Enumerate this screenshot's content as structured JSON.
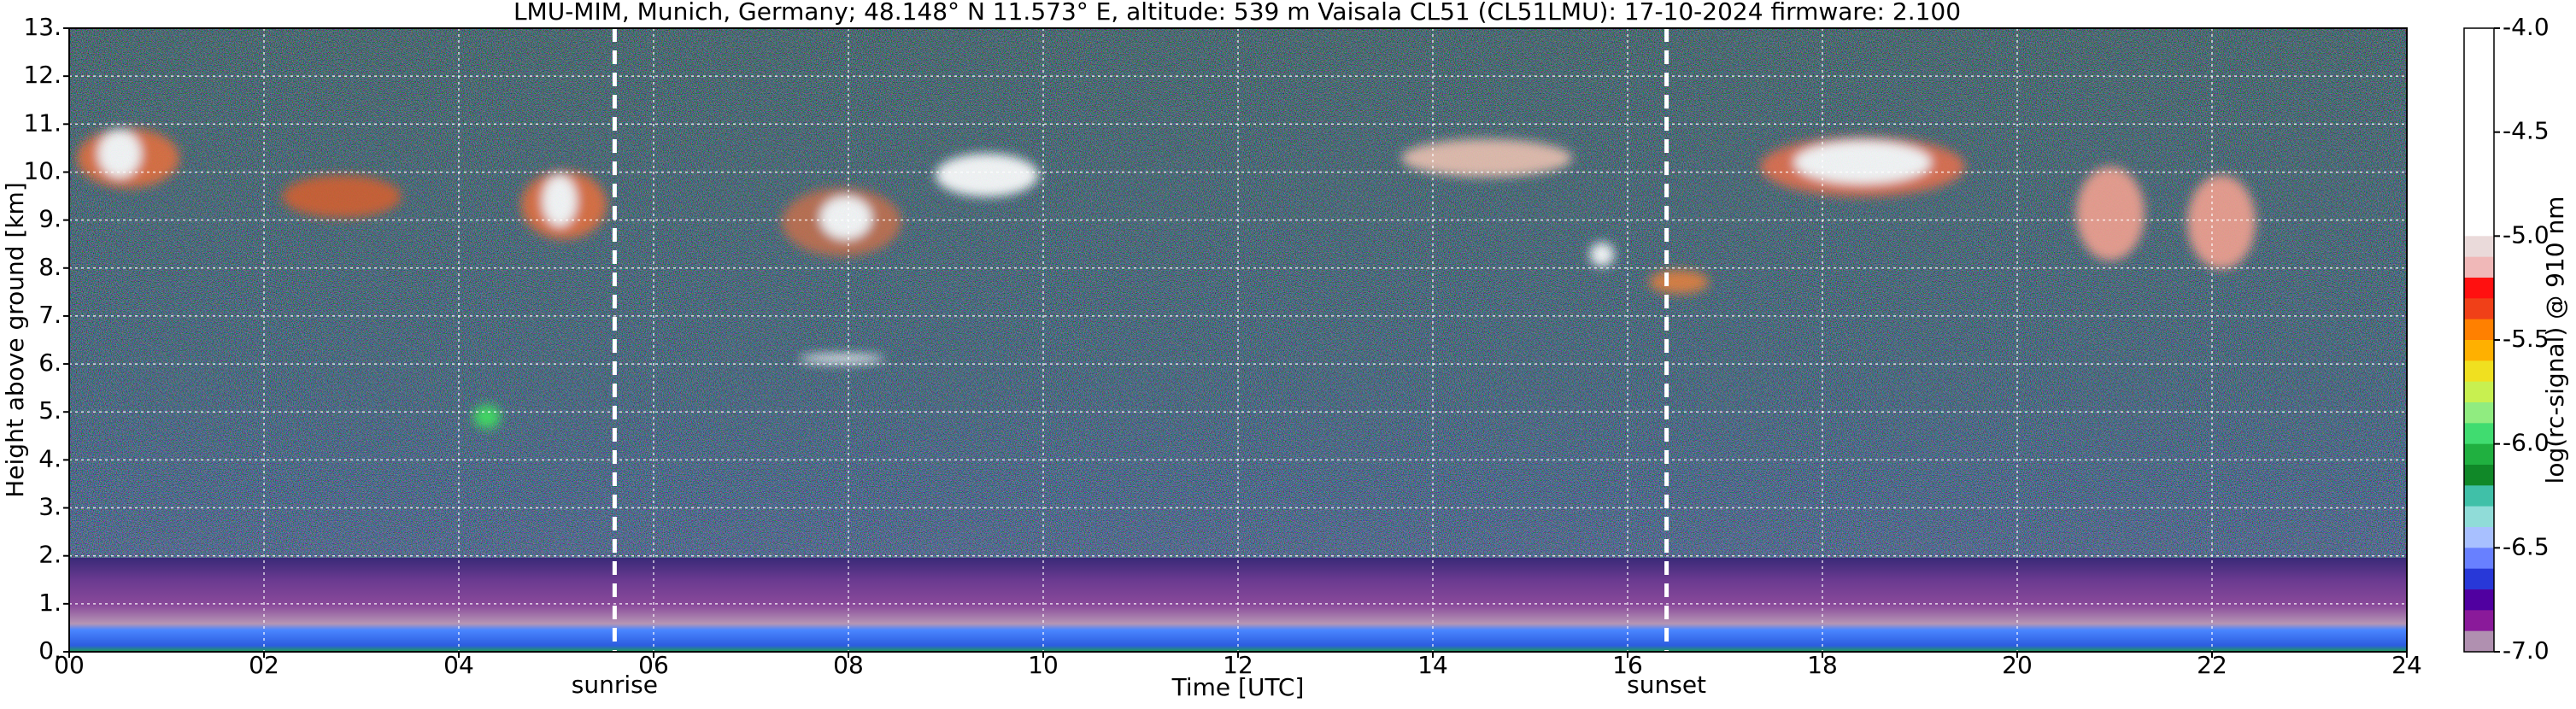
{
  "chart_data": {
    "type": "heatmap",
    "title": "LMU-MIM, Munich, Germany; 48.148° N 11.573° E, altitude: 539 m    Vaisala CL51 (CL51LMU): 17-10-2024    firmware: 2.100",
    "x_label": "Time [UTC]",
    "y_label": "Height above ground [km]",
    "xlim": [
      0,
      24
    ],
    "xticks": [
      {
        "value": 0,
        "label": "00"
      },
      {
        "value": 2,
        "label": "02"
      },
      {
        "value": 4,
        "label": "04"
      },
      {
        "value": 6,
        "label": "06"
      },
      {
        "value": 8,
        "label": "08"
      },
      10,
      12,
      14,
      16,
      18,
      20,
      22,
      24
    ],
    "ylim": [
      0,
      13
    ],
    "yticks": [
      {
        "value": 0,
        "label": "0."
      },
      {
        "value": 1,
        "label": "1."
      },
      {
        "value": 2,
        "label": "2."
      },
      {
        "value": 3,
        "label": "3."
      },
      {
        "value": 4,
        "label": "4."
      },
      {
        "value": 5,
        "label": "5."
      },
      {
        "value": 6,
        "label": "6."
      },
      {
        "value": 7,
        "label": "7."
      },
      {
        "value": 8,
        "label": "8."
      },
      {
        "value": 9,
        "label": "9."
      },
      {
        "value": 10,
        "label": "10."
      },
      {
        "value": 11,
        "label": "11."
      },
      {
        "value": 12,
        "label": "12."
      },
      {
        "value": 13,
        "label": "13."
      }
    ],
    "grid": true,
    "annotations": [
      {
        "text": "sunrise",
        "x": 5.6
      },
      {
        "text": "sunset",
        "x": 16.4
      }
    ],
    "colorbar": {
      "label": "log(rc-signal) @ 910 nm",
      "lim": [
        -7,
        -4
      ],
      "ticks": [
        {
          "value": -4,
          "label": "-4.0"
        },
        {
          "value": -4.5,
          "label": "-4.5"
        },
        {
          "value": -5,
          "label": "-5.0"
        },
        {
          "value": -5.5,
          "label": "-5.5"
        },
        {
          "value": -6,
          "label": "-6.0"
        },
        {
          "value": -6.5,
          "label": "-6.5"
        },
        {
          "value": -7,
          "label": "-7.0"
        }
      ],
      "colors": [
        "#ffffff",
        "#ffffff",
        "#ffffff",
        "#ffffff",
        "#ffffff",
        "#ffffff",
        "#ffffff",
        "#ffffff",
        "#ffffff",
        "#ffffff",
        "#eadada",
        "#f0b8b8",
        "#ff1010",
        "#f04018",
        "#ff8000",
        "#ffb000",
        "#f0e020",
        "#c8f050",
        "#90ec80",
        "#40dc70",
        "#20b040",
        "#108828",
        "#40c0a8",
        "#90dcd8",
        "#a8c0ff",
        "#6880ff",
        "#2838d8",
        "#5000a0",
        "#8a1a9a",
        "#b090b0"
      ]
    }
  }
}
